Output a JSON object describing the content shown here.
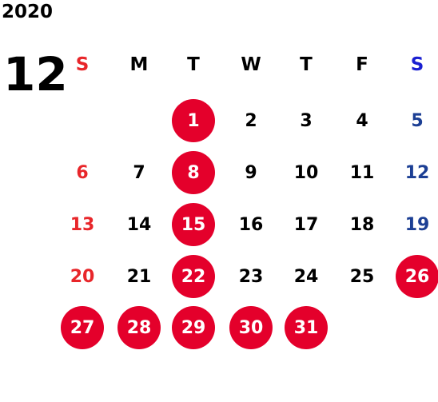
{
  "calendar": {
    "year": "2020",
    "month": "12",
    "weekdays": [
      "S",
      "M",
      "T",
      "W",
      "T",
      "F",
      "S"
    ],
    "weeks": [
      [
        "",
        "",
        "1",
        "2",
        "3",
        "4",
        "5"
      ],
      [
        "6",
        "7",
        "8",
        "9",
        "10",
        "11",
        "12"
      ],
      [
        "13",
        "14",
        "15",
        "16",
        "17",
        "18",
        "19"
      ],
      [
        "20",
        "21",
        "22",
        "23",
        "24",
        "25",
        "26"
      ],
      [
        "27",
        "28",
        "29",
        "30",
        "31",
        "",
        ""
      ]
    ],
    "circled_days": [
      "1",
      "8",
      "15",
      "22",
      "26",
      "27",
      "28",
      "29",
      "30",
      "31"
    ]
  },
  "colors": {
    "sunday": "#e8262a",
    "saturday": "#1c3f94",
    "highlight": "#e4002b"
  }
}
